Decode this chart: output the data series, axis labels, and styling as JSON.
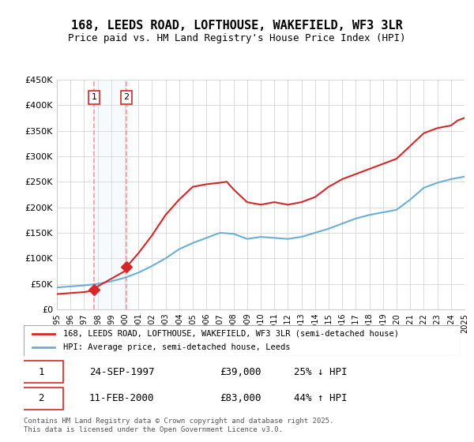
{
  "title": "168, LEEDS ROAD, LOFTHOUSE, WAKEFIELD, WF3 3LR",
  "subtitle": "Price paid vs. HM Land Registry's House Price Index (HPI)",
  "legend_line1": "168, LEEDS ROAD, LOFTHOUSE, WAKEFIELD, WF3 3LR (semi-detached house)",
  "legend_line2": "HPI: Average price, semi-detached house, Leeds",
  "sale1_label": "1",
  "sale1_date": "24-SEP-1997",
  "sale1_price": "£39,000",
  "sale1_pct": "25% ↓ HPI",
  "sale1_year": 1997.73,
  "sale1_value": 39000,
  "sale2_label": "2",
  "sale2_date": "11-FEB-2000",
  "sale2_price": "£83,000",
  "sale2_pct": "44% ↑ HPI",
  "sale2_year": 2000.11,
  "sale2_value": 83000,
  "footer": "Contains HM Land Registry data © Crown copyright and database right 2025.\nThis data is licensed under the Open Government Licence v3.0.",
  "hpi_color": "#6baed6",
  "price_color": "#d62728",
  "vline_color": "#ff9999",
  "shade_color": "#d0e8f5",
  "ylim": [
    0,
    450000
  ],
  "yticks": [
    0,
    50000,
    100000,
    150000,
    200000,
    250000,
    300000,
    350000,
    400000,
    450000
  ],
  "ylabel_fmt": [
    "£0",
    "£50K",
    "£100K",
    "£150K",
    "£200K",
    "£250K",
    "£300K",
    "£350K",
    "£400K",
    "£450K"
  ],
  "hpi_years": [
    1995,
    1996,
    1997,
    1998,
    1999,
    2000,
    2001,
    2002,
    2003,
    2004,
    2005,
    2006,
    2007,
    2008,
    2009,
    2010,
    2011,
    2012,
    2013,
    2014,
    2015,
    2016,
    2017,
    2018,
    2019,
    2020,
    2021,
    2022,
    2023,
    2024,
    2025
  ],
  "hpi_values": [
    43000,
    45000,
    47000,
    50000,
    55000,
    62000,
    72000,
    85000,
    100000,
    118000,
    130000,
    140000,
    150000,
    148000,
    138000,
    142000,
    140000,
    138000,
    142000,
    150000,
    158000,
    168000,
    178000,
    185000,
    190000,
    195000,
    215000,
    238000,
    248000,
    255000,
    260000
  ],
  "price_years": [
    1995,
    1995.5,
    1996,
    1996.5,
    1997,
    1997.5,
    1997.73,
    1998,
    1999,
    2000,
    2000.11,
    2001,
    2002,
    2003,
    2004,
    2005,
    2006,
    2007,
    2007.5,
    2008,
    2009,
    2010,
    2011,
    2012,
    2013,
    2014,
    2015,
    2016,
    2017,
    2018,
    2019,
    2020,
    2021,
    2022,
    2023,
    2024,
    2024.5,
    2025
  ],
  "price_values": [
    30000,
    31000,
    32000,
    33000,
    34000,
    36000,
    39000,
    45000,
    60000,
    75000,
    83000,
    110000,
    145000,
    185000,
    215000,
    240000,
    245000,
    248000,
    250000,
    235000,
    210000,
    205000,
    210000,
    205000,
    210000,
    220000,
    240000,
    255000,
    265000,
    275000,
    285000,
    295000,
    320000,
    345000,
    355000,
    360000,
    370000,
    375000
  ]
}
